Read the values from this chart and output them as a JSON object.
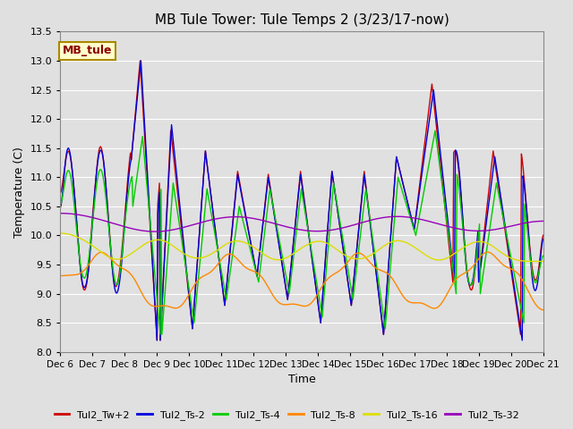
{
  "title": "MB Tule Tower: Tule Temps 2 (3/23/17-now)",
  "xlabel": "Time",
  "ylabel": "Temperature (C)",
  "ylim": [
    8.0,
    13.5
  ],
  "yticks": [
    8.0,
    8.5,
    9.0,
    9.5,
    10.0,
    10.5,
    11.0,
    11.5,
    12.0,
    12.5,
    13.0,
    13.5
  ],
  "series_colors": {
    "Tul2_Tw+2": "#cc0000",
    "Tul2_Ts-2": "#0000dd",
    "Tul2_Ts-4": "#00cc00",
    "Tul2_Ts-8": "#ff8800",
    "Tul2_Ts-16": "#dddd00",
    "Tul2_Ts-32": "#9900bb"
  },
  "legend_label": "MB_tule",
  "x_tick_labels": [
    "Dec 6",
    "Dec 7",
    "Dec 8",
    "Dec 9",
    "Dec 10",
    "Dec 11",
    "Dec 12",
    "Dec 13",
    "Dec 14",
    "Dec 15",
    "Dec 16",
    "Dec 17",
    "Dec 18",
    "Dec 19",
    "Dec 20",
    "Dec 21"
  ],
  "bg_color": "#e0e0e0",
  "grid_color": "#ffffff",
  "n_days": 15,
  "n_pts": 600
}
